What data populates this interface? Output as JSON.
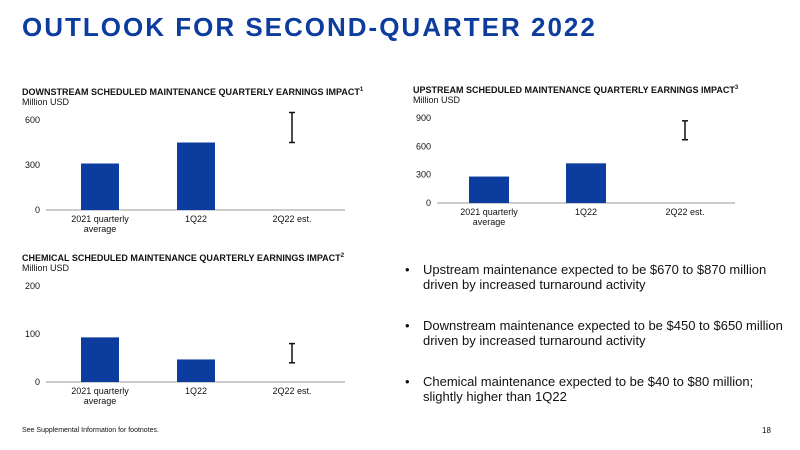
{
  "slide": {
    "title": "OUTLOOK FOR SECOND-QUARTER 2022",
    "footnote": "See Supplemental Information for footnotes.",
    "page_number": "18"
  },
  "bullets": [
    "Upstream maintenance expected to be $670 to $870 million driven by increased turnaround activity",
    "Downstream maintenance expected to be $450 to $650 million driven by increased turnaround activity",
    "Chemical maintenance expected to be $40 to $80 million; slightly higher than 1Q22"
  ],
  "bullet_symbol": "•",
  "colors": {
    "accent": "#0b3c9e",
    "bar": "#0b3c9e",
    "axis": "#999999"
  },
  "chart_data": [
    {
      "id": "downstream",
      "type": "bar",
      "title": "DOWNSTREAM SCHEDULED MAINTENANCE QUARTERLY EARNINGS IMPACT",
      "footnote_ref": "1",
      "ylabel": "Million USD",
      "categories": [
        "2021 quarterly average",
        "1Q22",
        "2Q22 est."
      ],
      "category_lines": [
        [
          "2021 quarterly",
          "average"
        ],
        [
          "1Q22"
        ],
        [
          "2Q22 est."
        ]
      ],
      "values": [
        310,
        450,
        null
      ],
      "range_estimate": {
        "category": "2Q22 est.",
        "low": 450,
        "high": 650
      },
      "yticks": [
        0,
        300,
        600
      ],
      "ylim": [
        0,
        650
      ],
      "grid": false
    },
    {
      "id": "upstream",
      "type": "bar",
      "title": "UPSTREAM SCHEDULED MAINTENANCE QUARTERLY EARNINGS IMPACT",
      "footnote_ref": "3",
      "ylabel": "Million USD",
      "categories": [
        "2021 quarterly average",
        "1Q22",
        "2Q22 est."
      ],
      "category_lines": [
        [
          "2021 quarterly",
          "average"
        ],
        [
          "1Q22"
        ],
        [
          "2Q22 est."
        ]
      ],
      "values": [
        280,
        420,
        null
      ],
      "range_estimate": {
        "category": "2Q22 est.",
        "low": 670,
        "high": 870
      },
      "yticks": [
        0,
        300,
        600,
        900
      ],
      "ylim": [
        0,
        900
      ],
      "grid": false
    },
    {
      "id": "chemical",
      "type": "bar",
      "title": "CHEMICAL SCHEDULED MAINTENANCE QUARTERLY EARNINGS IMPACT",
      "footnote_ref": "2",
      "ylabel": "Million USD",
      "categories": [
        "2021 quarterly average",
        "1Q22",
        "2Q22 est."
      ],
      "category_lines": [
        [
          "2021 quarterly",
          "average"
        ],
        [
          "1Q22"
        ],
        [
          "2Q22 est."
        ]
      ],
      "values": [
        93,
        47,
        null
      ],
      "range_estimate": {
        "category": "2Q22 est.",
        "low": 40,
        "high": 80
      },
      "yticks": [
        0,
        100,
        200
      ],
      "ylim": [
        0,
        200
      ],
      "grid": false
    }
  ]
}
